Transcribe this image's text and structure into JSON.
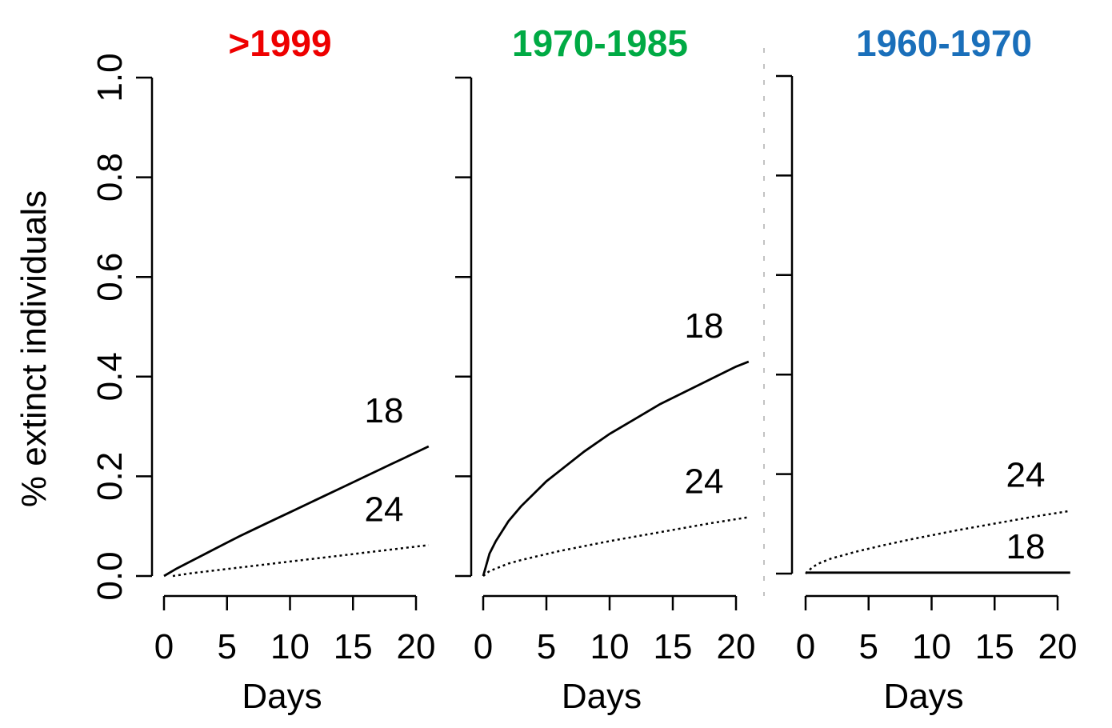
{
  "y_axis_label": "% extinct individuals",
  "chart_data": [
    {
      "type": "line",
      "title": ">1999",
      "title_color": "#ee0000",
      "xlabel": "Days",
      "ylabel": "% extinct individuals",
      "xlim": [
        0,
        21
      ],
      "ylim": [
        0,
        1
      ],
      "x_ticks": [
        "0",
        "5",
        "10",
        "15",
        "20"
      ],
      "y_ticks": [
        "0.0",
        "0.2",
        "0.4",
        "0.6",
        "0.8",
        "1.0"
      ],
      "show_y_axis": true,
      "grid": false,
      "series": [
        {
          "name": "18",
          "style": "solid",
          "x": [
            0,
            1,
            2,
            3,
            4,
            5,
            6,
            7,
            8,
            9,
            10,
            11,
            12,
            13,
            14,
            15,
            16,
            17,
            18,
            19,
            20,
            21
          ],
          "y": [
            0,
            0.015,
            0.028,
            0.041,
            0.054,
            0.067,
            0.08,
            0.092,
            0.104,
            0.116,
            0.128,
            0.14,
            0.152,
            0.164,
            0.176,
            0.188,
            0.2,
            0.212,
            0.224,
            0.236,
            0.248,
            0.26
          ]
        },
        {
          "name": "24",
          "style": "dotted",
          "x": [
            0.7,
            2,
            4,
            6,
            8,
            10,
            12,
            14,
            16,
            18,
            20,
            21
          ],
          "y": [
            0,
            0.005,
            0.011,
            0.017,
            0.023,
            0.029,
            0.035,
            0.041,
            0.047,
            0.053,
            0.059,
            0.062
          ]
        }
      ]
    },
    {
      "type": "line",
      "title": "1970-1985",
      "title_color": "#00aa44",
      "xlabel": "Days",
      "ylabel": "",
      "xlim": [
        0,
        21
      ],
      "ylim": [
        0,
        1
      ],
      "x_ticks": [
        "0",
        "5",
        "10",
        "15",
        "20"
      ],
      "y_ticks": [],
      "show_y_axis": true,
      "grid": false,
      "series": [
        {
          "name": "18",
          "style": "solid",
          "x": [
            0,
            0.5,
            1,
            2,
            3,
            4,
            5,
            6,
            8,
            10,
            12,
            14,
            16,
            18,
            20,
            21
          ],
          "y": [
            0,
            0.045,
            0.07,
            0.11,
            0.14,
            0.165,
            0.19,
            0.21,
            0.25,
            0.285,
            0.315,
            0.345,
            0.37,
            0.395,
            0.42,
            0.43
          ]
        },
        {
          "name": "24",
          "style": "dotted",
          "x": [
            0,
            0.5,
            1,
            2,
            3,
            4,
            5,
            6,
            8,
            10,
            12,
            14,
            16,
            18,
            20,
            21
          ],
          "y": [
            0,
            0.01,
            0.015,
            0.025,
            0.032,
            0.038,
            0.044,
            0.05,
            0.06,
            0.07,
            0.079,
            0.088,
            0.097,
            0.106,
            0.114,
            0.118
          ]
        }
      ]
    },
    {
      "type": "line",
      "title": "1960-1970",
      "title_color": "#1a6fba",
      "xlabel": "Days",
      "ylabel": "",
      "xlim": [
        0,
        21
      ],
      "ylim": [
        0,
        1
      ],
      "x_ticks": [
        "0",
        "5",
        "10",
        "15",
        "20"
      ],
      "y_ticks": [],
      "show_y_axis": true,
      "grid": false,
      "series": [
        {
          "name": "24",
          "style": "dotted",
          "x": [
            0,
            0.5,
            1,
            2,
            3,
            4,
            5,
            6,
            8,
            10,
            12,
            14,
            16,
            18,
            20,
            21
          ],
          "y": [
            0,
            0.012,
            0.02,
            0.03,
            0.037,
            0.044,
            0.05,
            0.056,
            0.067,
            0.077,
            0.087,
            0.096,
            0.105,
            0.114,
            0.122,
            0.126
          ]
        },
        {
          "name": "18",
          "style": "solid",
          "x": [
            0,
            21
          ],
          "y": [
            0.002,
            0.002
          ]
        }
      ]
    }
  ]
}
